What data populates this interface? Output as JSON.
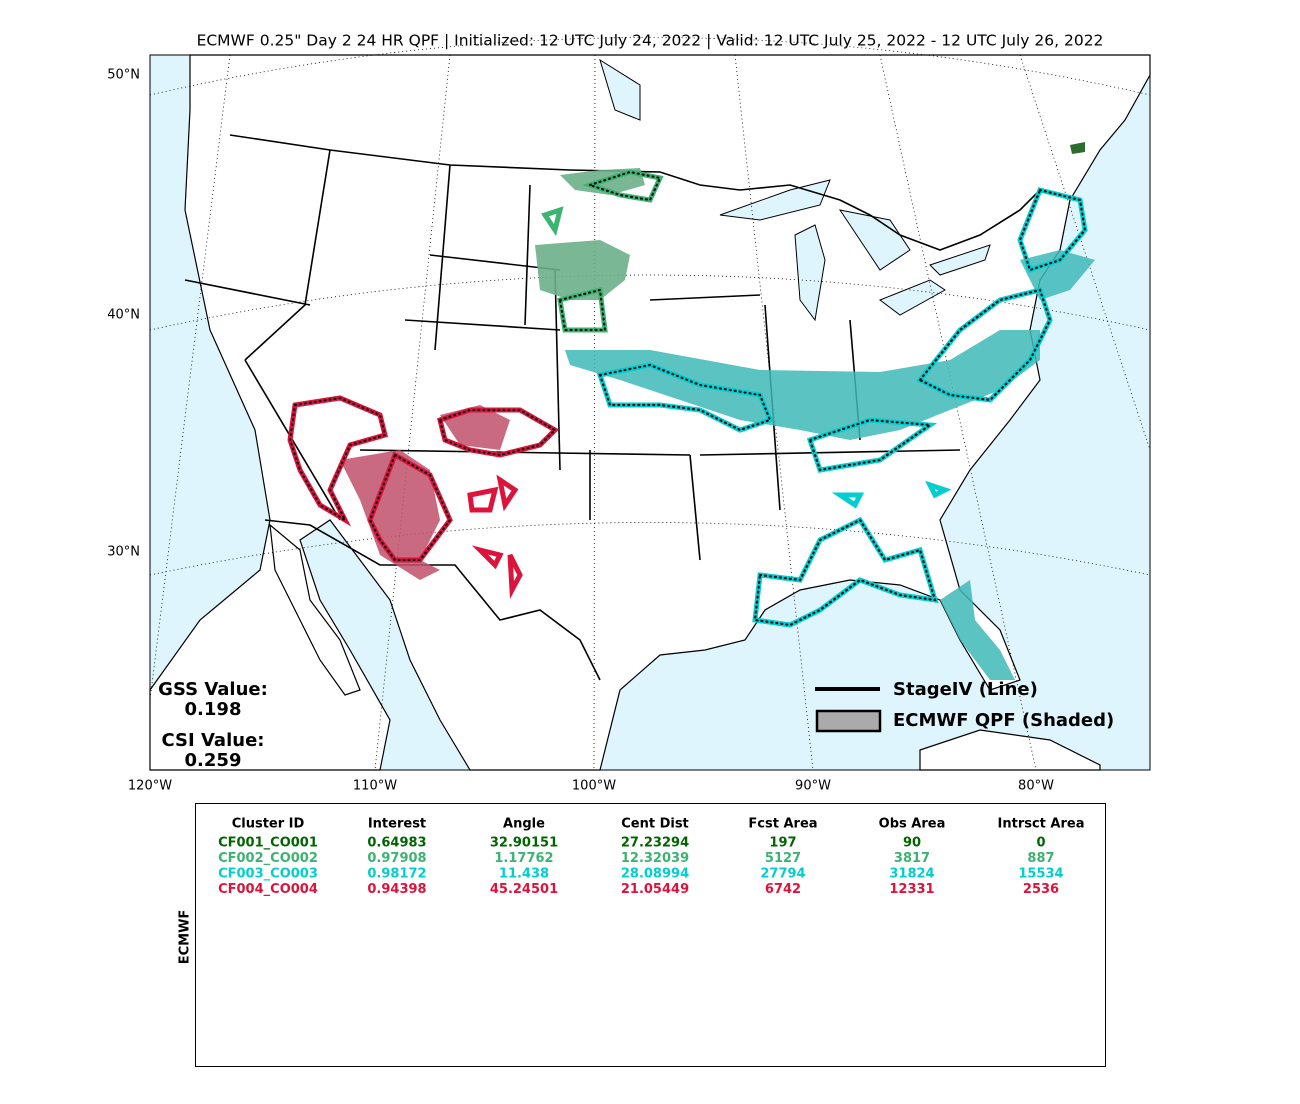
{
  "title": "ECMWF 0.25\" Day 2 24 HR QPF | Initialized: 12 UTC July 24, 2022 | Valid: 12 UTC July 25, 2022 - 12 UTC July 26, 2022",
  "map": {
    "lat_labels": [
      "50°N",
      "40°N",
      "30°N"
    ],
    "lon_labels": [
      "120°W",
      "110°W",
      "100°W",
      "90°W",
      "80°W"
    ],
    "legend": [
      "StageIV (Line)",
      "ECMWF QPF (Shaded)"
    ],
    "stats": {
      "gss_label": "GSS Value:",
      "gss": "0.198",
      "csi_label": "CSI Value:",
      "csi": "0.259"
    }
  },
  "table": {
    "side_label": "ECMWF",
    "headers": [
      "Cluster ID",
      "Interest",
      "Angle",
      "Cent Dist",
      "Fcst Area",
      "Obs Area",
      "Intrsct Area"
    ],
    "rows": [
      {
        "color": "#006400",
        "cells": [
          "CF001_CO001",
          "0.64983",
          "32.90151",
          "27.23294",
          "197",
          "90",
          "0"
        ]
      },
      {
        "color": "#3cb371",
        "cells": [
          "CF002_CO002",
          "0.97908",
          "1.17762",
          "12.32039",
          "5127",
          "3817",
          "887"
        ]
      },
      {
        "color": "#00ced1",
        "cells": [
          "CF003_CO003",
          "0.98172",
          "11.438",
          "28.08994",
          "27794",
          "31824",
          "15534"
        ]
      },
      {
        "color": "#dc143c",
        "cells": [
          "CF004_CO004",
          "0.94398",
          "45.24501",
          "21.05449",
          "6742",
          "12331",
          "2536"
        ]
      }
    ]
  }
}
